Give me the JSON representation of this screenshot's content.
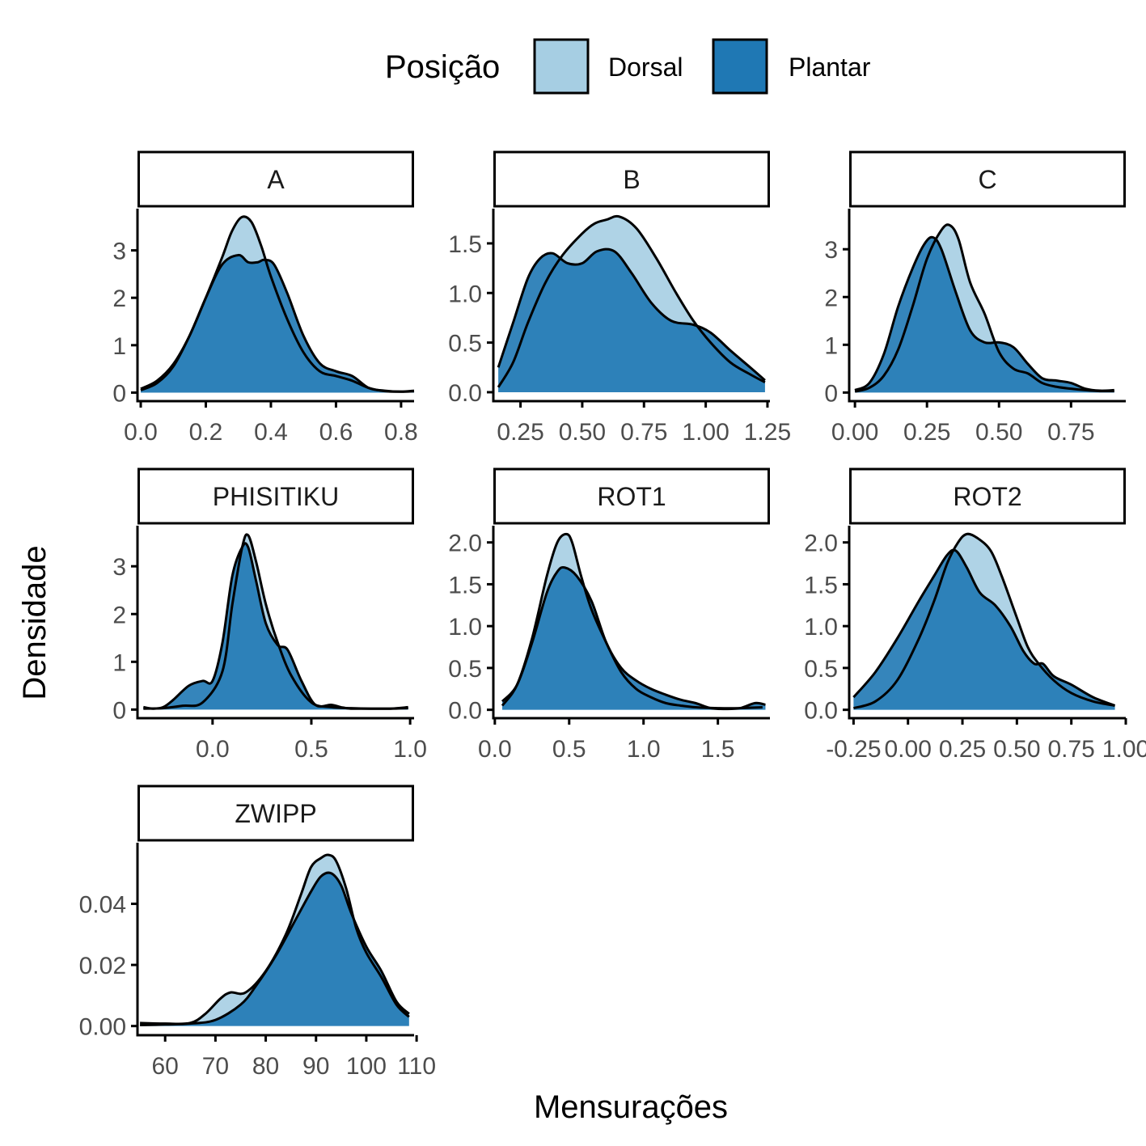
{
  "legend": {
    "title": "Posição",
    "items": [
      {
        "label": "Dorsal",
        "color": "#a6cee3"
      },
      {
        "label": "Plantar",
        "color": "#1f78b4"
      }
    ]
  },
  "axis_titles": {
    "x": "Mensurações",
    "y": "Densidade"
  },
  "chart_data": {
    "type": "area",
    "title": "",
    "xlabel": "Mensurações",
    "ylabel": "Densidade",
    "grid": false,
    "legend_position": "top",
    "series_names": [
      "Dorsal",
      "Plantar"
    ],
    "panels": [
      {
        "name": "A",
        "xlim": [
          -0.01,
          0.84
        ],
        "ylim": [
          -0.18,
          3.88
        ],
        "xticks": [
          0,
          0.2,
          0.4,
          0.6,
          0.8
        ],
        "xtick_labels": [
          "0.0",
          "0.2",
          "0.4",
          "0.6",
          "0.8"
        ],
        "yticks": [
          0,
          1,
          2,
          3
        ],
        "ytick_labels": [
          "0",
          "1",
          "2",
          "3"
        ],
        "series": [
          {
            "name": "Dorsal",
            "x": [
              0.0,
              0.05,
              0.1,
              0.15,
              0.2,
              0.25,
              0.28,
              0.31,
              0.34,
              0.37,
              0.4,
              0.45,
              0.5,
              0.55,
              0.6,
              0.65,
              0.7,
              0.75,
              0.8,
              0.84
            ],
            "y": [
              0.05,
              0.2,
              0.55,
              1.2,
              2.0,
              2.85,
              3.4,
              3.7,
              3.6,
              3.1,
              2.45,
              1.55,
              0.85,
              0.45,
              0.35,
              0.25,
              0.1,
              0.03,
              0.02,
              0.03
            ]
          },
          {
            "name": "Plantar",
            "x": [
              0.0,
              0.05,
              0.1,
              0.15,
              0.2,
              0.25,
              0.3,
              0.33,
              0.36,
              0.38,
              0.41,
              0.45,
              0.5,
              0.55,
              0.6,
              0.65,
              0.7,
              0.75,
              0.8,
              0.84
            ],
            "y": [
              0.08,
              0.25,
              0.6,
              1.2,
              2.0,
              2.7,
              2.9,
              2.75,
              2.75,
              2.8,
              2.7,
              2.1,
              1.2,
              0.62,
              0.45,
              0.35,
              0.1,
              0.04,
              0.02,
              0.04
            ]
          }
        ]
      },
      {
        "name": "B",
        "xlim": [
          0.14,
          1.26
        ],
        "ylim": [
          -0.09,
          1.85
        ],
        "xticks": [
          0.25,
          0.5,
          0.75,
          1.0,
          1.25
        ],
        "xtick_labels": [
          "0.25",
          "0.50",
          "0.75",
          "1.00",
          "1.25"
        ],
        "yticks": [
          0,
          0.5,
          1.0,
          1.5
        ],
        "ytick_labels": [
          "0.0",
          "0.5",
          "1.0",
          "1.5"
        ],
        "series": [
          {
            "name": "Dorsal",
            "x": [
              0.16,
              0.22,
              0.28,
              0.35,
              0.42,
              0.5,
              0.55,
              0.6,
              0.65,
              0.72,
              0.8,
              0.88,
              0.95,
              1.02,
              1.1,
              1.18,
              1.24
            ],
            "y": [
              0.05,
              0.3,
              0.7,
              1.1,
              1.38,
              1.6,
              1.7,
              1.74,
              1.77,
              1.65,
              1.35,
              1.0,
              0.72,
              0.5,
              0.3,
              0.18,
              0.1
            ]
          },
          {
            "name": "Plantar",
            "x": [
              0.16,
              0.22,
              0.28,
              0.33,
              0.38,
              0.44,
              0.5,
              0.56,
              0.63,
              0.7,
              0.78,
              0.86,
              0.95,
              1.02,
              1.1,
              1.18,
              1.24
            ],
            "y": [
              0.25,
              0.7,
              1.15,
              1.35,
              1.4,
              1.3,
              1.3,
              1.42,
              1.42,
              1.2,
              0.9,
              0.72,
              0.68,
              0.6,
              0.42,
              0.25,
              0.12
            ]
          }
        ]
      },
      {
        "name": "C",
        "xlim": [
          -0.02,
          0.94
        ],
        "ylim": [
          -0.18,
          3.85
        ],
        "xticks": [
          0,
          0.25,
          0.5,
          0.75
        ],
        "xtick_labels": [
          "0.00",
          "0.25",
          "0.50",
          "0.75"
        ],
        "yticks": [
          0,
          1,
          2,
          3
        ],
        "ytick_labels": [
          "0",
          "1",
          "2",
          "3"
        ],
        "series": [
          {
            "name": "Dorsal",
            "x": [
              0.0,
              0.05,
              0.1,
              0.15,
              0.2,
              0.25,
              0.3,
              0.33,
              0.36,
              0.4,
              0.45,
              0.5,
              0.55,
              0.6,
              0.65,
              0.7,
              0.75,
              0.8,
              0.85,
              0.9
            ],
            "y": [
              0.02,
              0.1,
              0.35,
              0.9,
              1.8,
              2.8,
              3.4,
              3.5,
              3.2,
              2.3,
              1.65,
              0.85,
              0.5,
              0.4,
              0.2,
              0.12,
              0.08,
              0.05,
              0.03,
              0.03
            ]
          },
          {
            "name": "Plantar",
            "x": [
              0.0,
              0.05,
              0.1,
              0.15,
              0.2,
              0.24,
              0.27,
              0.3,
              0.35,
              0.4,
              0.45,
              0.5,
              0.55,
              0.6,
              0.65,
              0.7,
              0.75,
              0.8,
              0.85,
              0.9
            ],
            "y": [
              0.05,
              0.2,
              0.8,
              1.8,
              2.6,
              3.1,
              3.25,
              3.0,
              2.1,
              1.3,
              1.05,
              1.05,
              0.95,
              0.6,
              0.3,
              0.25,
              0.2,
              0.08,
              0.04,
              0.05
            ]
          }
        ]
      },
      {
        "name": "PHISITIKU",
        "xlim": [
          -0.38,
          1.02
        ],
        "ylim": [
          -0.18,
          3.85
        ],
        "xticks": [
          0,
          0.5,
          1.0
        ],
        "xtick_labels": [
          "0.0",
          "0.5",
          "1.0"
        ],
        "yticks": [
          0,
          1,
          2,
          3
        ],
        "ytick_labels": [
          "0",
          "1",
          "2",
          "3"
        ],
        "series": [
          {
            "name": "Dorsal",
            "x": [
              -0.35,
              -0.25,
              -0.15,
              -0.05,
              0.05,
              0.1,
              0.15,
              0.18,
              0.22,
              0.27,
              0.33,
              0.4,
              0.5,
              0.6,
              0.7,
              0.8,
              0.9,
              0.99
            ],
            "y": [
              0.02,
              0.03,
              0.08,
              0.15,
              0.8,
              2.2,
              3.4,
              3.65,
              3.1,
              2.2,
              1.4,
              0.7,
              0.15,
              0.05,
              0.03,
              0.02,
              0.02,
              0.03
            ]
          },
          {
            "name": "Plantar",
            "x": [
              -0.35,
              -0.3,
              -0.25,
              -0.2,
              -0.12,
              -0.05,
              0.0,
              0.05,
              0.1,
              0.15,
              0.18,
              0.22,
              0.27,
              0.33,
              0.38,
              0.45,
              0.52,
              0.6,
              0.65,
              0.7,
              0.8,
              0.9,
              0.99
            ],
            "y": [
              0.05,
              0.02,
              0.05,
              0.2,
              0.5,
              0.6,
              0.6,
              1.4,
              2.8,
              3.4,
              3.4,
              2.7,
              1.8,
              1.35,
              1.25,
              0.6,
              0.1,
              0.1,
              0.05,
              0.02,
              0.02,
              0.02,
              0.05
            ]
          }
        ]
      },
      {
        "name": "ROT1",
        "xlim": [
          -0.01,
          1.85
        ],
        "ylim": [
          -0.1,
          2.2
        ],
        "xticks": [
          0,
          0.5,
          1.0,
          1.5
        ],
        "xtick_labels": [
          "0.0",
          "0.5",
          "1.0",
          "1.5"
        ],
        "yticks": [
          0,
          0.5,
          1.0,
          1.5,
          2.0
        ],
        "ytick_labels": [
          "0.0",
          "0.5",
          "1.0",
          "1.5",
          "2.0"
        ],
        "series": [
          {
            "name": "Dorsal",
            "x": [
              0.05,
              0.15,
              0.25,
              0.35,
              0.42,
              0.48,
              0.52,
              0.58,
              0.65,
              0.75,
              0.85,
              0.95,
              1.05,
              1.15,
              1.25,
              1.35,
              1.5,
              1.65,
              1.8
            ],
            "y": [
              0.05,
              0.3,
              0.85,
              1.6,
              2.0,
              2.1,
              2.0,
              1.6,
              1.2,
              0.8,
              0.45,
              0.25,
              0.15,
              0.08,
              0.05,
              0.03,
              0.02,
              0.02,
              0.03
            ]
          },
          {
            "name": "Plantar",
            "x": [
              0.05,
              0.15,
              0.25,
              0.35,
              0.42,
              0.47,
              0.55,
              0.65,
              0.75,
              0.85,
              0.95,
              1.05,
              1.15,
              1.25,
              1.35,
              1.45,
              1.55,
              1.65,
              1.75,
              1.82
            ],
            "y": [
              0.1,
              0.3,
              0.8,
              1.4,
              1.65,
              1.7,
              1.6,
              1.3,
              0.8,
              0.5,
              0.35,
              0.25,
              0.18,
              0.12,
              0.08,
              0.02,
              0.01,
              0.02,
              0.08,
              0.06
            ]
          }
        ]
      },
      {
        "name": "ROT2",
        "xlim": [
          -0.27,
          1.0
        ],
        "ylim": [
          -0.1,
          2.2
        ],
        "xticks": [
          -0.25,
          0,
          0.25,
          0.5,
          0.75,
          1.0
        ],
        "xtick_labels": [
          "-0.25",
          "0.00",
          "0.25",
          "0.50",
          "0.75",
          "1.00"
        ],
        "yticks": [
          0,
          0.5,
          1.0,
          1.5,
          2.0
        ],
        "ytick_labels": [
          "0.0",
          "0.5",
          "1.0",
          "1.5",
          "2.0"
        ],
        "series": [
          {
            "name": "Dorsal",
            "x": [
              -0.25,
              -0.15,
              -0.05,
              0.05,
              0.12,
              0.18,
              0.23,
              0.27,
              0.32,
              0.38,
              0.43,
              0.5,
              0.55,
              0.6,
              0.67,
              0.75,
              0.85,
              0.95
            ],
            "y": [
              0.02,
              0.1,
              0.35,
              0.85,
              1.3,
              1.75,
              2.0,
              2.1,
              2.05,
              1.9,
              1.6,
              1.1,
              0.75,
              0.55,
              0.35,
              0.2,
              0.1,
              0.05
            ]
          },
          {
            "name": "Plantar",
            "x": [
              -0.25,
              -0.15,
              -0.05,
              0.05,
              0.12,
              0.18,
              0.22,
              0.27,
              0.33,
              0.4,
              0.47,
              0.53,
              0.58,
              0.62,
              0.67,
              0.75,
              0.85,
              0.95
            ],
            "y": [
              0.15,
              0.45,
              0.85,
              1.3,
              1.6,
              1.85,
              1.9,
              1.7,
              1.4,
              1.25,
              1.0,
              0.7,
              0.55,
              0.55,
              0.4,
              0.3,
              0.15,
              0.05
            ]
          }
        ]
      },
      {
        "name": "ZWIPP",
        "xlim": [
          54.5,
          109.5
        ],
        "ylim": [
          -0.003,
          0.06
        ],
        "xticks": [
          60,
          70,
          80,
          90,
          100,
          110
        ],
        "xtick_labels": [
          "60",
          "70",
          "80",
          "90",
          "100",
          "110"
        ],
        "yticks": [
          0,
          0.02,
          0.04
        ],
        "ytick_labels": [
          "0.00",
          "0.02",
          "0.04"
        ],
        "series": [
          {
            "name": "Dorsal",
            "x": [
              55,
              60,
              65,
              68,
              71,
              73,
              76,
              80,
              84,
              87,
              89,
              91,
              92.5,
              94,
              96,
              98,
              100,
              103,
              106,
              108.5
            ],
            "y": [
              0.001,
              0.0008,
              0.001,
              0.004,
              0.009,
              0.011,
              0.011,
              0.018,
              0.03,
              0.043,
              0.052,
              0.055,
              0.056,
              0.054,
              0.045,
              0.032,
              0.024,
              0.016,
              0.007,
              0.003
            ]
          },
          {
            "name": "Plantar",
            "x": [
              55,
              60,
              65,
              70,
              75,
              78,
              82,
              86,
              89,
              91,
              93,
              95,
              97,
              100,
              103,
              106,
              108.5
            ],
            "y": [
              0.0003,
              0.0005,
              0.0008,
              0.002,
              0.007,
              0.013,
              0.023,
              0.035,
              0.044,
              0.049,
              0.05,
              0.046,
              0.037,
              0.026,
              0.018,
              0.008,
              0.004
            ]
          }
        ]
      }
    ]
  }
}
